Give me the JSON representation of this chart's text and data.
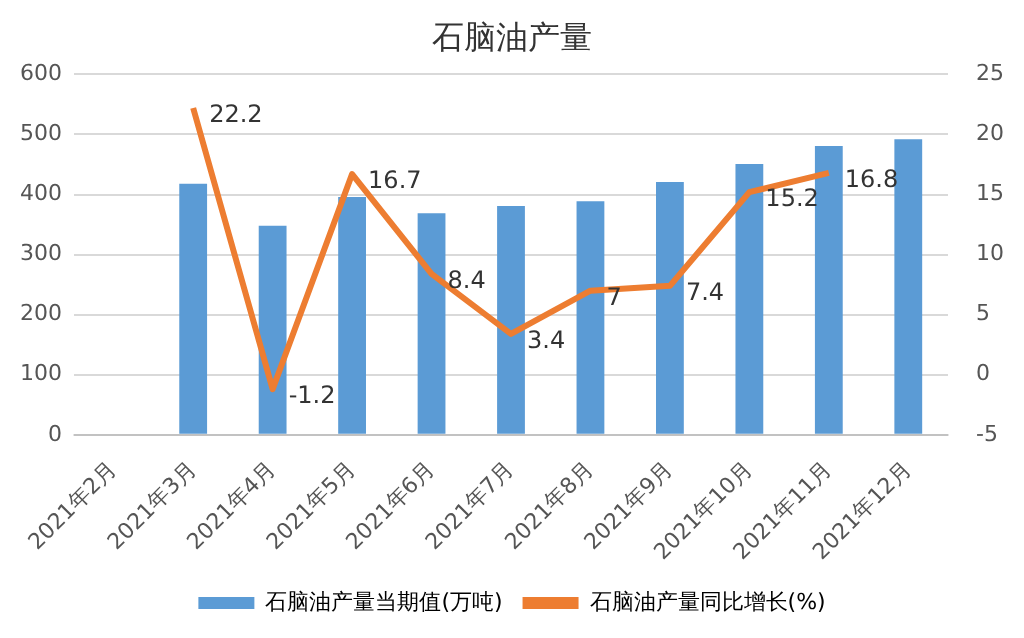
{
  "chart_data": {
    "type": "bar",
    "title": "石脑油产量",
    "categories": [
      "2021年2月",
      "2021年3月",
      "2021年4月",
      "2021年5月",
      "2021年6月",
      "2021年7月",
      "2021年8月",
      "2021年9月",
      "2021年10月",
      "2021年11月",
      "2021年12月"
    ],
    "series": [
      {
        "name": "石脑油产量当期值(万吨)",
        "color": "#5b9bd5",
        "values": [
          null,
          418,
          348,
          396,
          369,
          381,
          389,
          421,
          451,
          481,
          492
        ]
      },
      {
        "name": "石脑油产量同比增长(%)",
        "type": "line",
        "axis": "y2",
        "color": "#ed7d31",
        "marker": "none",
        "values": [
          null,
          22.2,
          -1.2,
          16.7,
          8.4,
          3.4,
          7,
          7.4,
          15.2,
          16.8,
          null
        ],
        "value_labels": [
          null,
          "22.2",
          "-1.2",
          "16.7",
          "8.4",
          "3.4",
          "7",
          "7.4",
          "15.2",
          "16.8",
          null
        ]
      }
    ],
    "ylim": [
      0,
      600
    ],
    "yticks": [
      0,
      100,
      200,
      300,
      400,
      500,
      600
    ],
    "y2lim": [
      -5,
      25
    ],
    "y2ticks": [
      -5,
      0,
      5,
      10,
      15,
      20,
      25
    ],
    "grid": "y",
    "legend": "bottom"
  }
}
